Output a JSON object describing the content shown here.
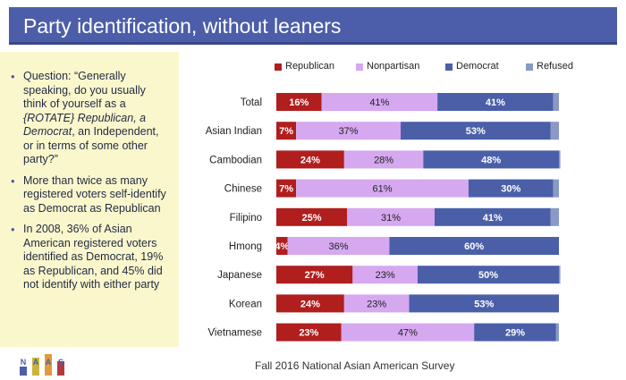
{
  "header": {
    "title": "Party identification, without leaners"
  },
  "notes": {
    "bullets": [
      [
        "Question: “Generally speaking, do you usually think of yourself as a ",
        "{ROTATE} Republican, a Democrat",
        ", an Independent, or in terms of some other party?”"
      ],
      [
        "More than twice as many registered voters self-identify as Democrat as Republican"
      ],
      [
        "In 2008, 36% of Asian American registered voters identified as Democrat, 19% as Republican, and 45% did not identify with either party"
      ]
    ]
  },
  "footer": {
    "source": "Fall 2016 National Asian American Survey"
  },
  "logo": {
    "letters": [
      "N",
      "A",
      "A",
      "S"
    ],
    "colors": [
      "#4c5ea9",
      "#c9b53c",
      "#e19b3a",
      "#b43a3a"
    ]
  },
  "chart_data": {
    "type": "bar",
    "orientation": "horizontal",
    "stacked": true,
    "categories": [
      "Total",
      "Asian Indian",
      "Cambodian",
      "Chinese",
      "Filipino",
      "Hmong",
      "Japanese",
      "Korean",
      "Vietnamese"
    ],
    "series": [
      {
        "name": "Republican",
        "color": "#b01e1e",
        "values": [
          16,
          7,
          24,
          7,
          25,
          4,
          27,
          24,
          23
        ],
        "labels": [
          "16%",
          "7%",
          "24%",
          "7%",
          "25%",
          "4%",
          "27%",
          "24%",
          "23%"
        ]
      },
      {
        "name": "Nonpartisan",
        "color": "#d5a8f0",
        "values": [
          41,
          37,
          28,
          61,
          31,
          36,
          23,
          23,
          47
        ],
        "labels": [
          "41%",
          "37%",
          "28%",
          "61%",
          "31%",
          "36%",
          "23%",
          "23%",
          "47%"
        ]
      },
      {
        "name": "Democrat",
        "color": "#4a5fa8",
        "values": [
          41,
          53,
          48,
          30,
          41,
          60,
          50,
          53,
          29
        ],
        "labels": [
          "41%",
          "53%",
          "48%",
          "30%",
          "41%",
          "60%",
          "50%",
          "53%",
          "29%"
        ]
      },
      {
        "name": "Refused",
        "color": "#8a9ac4",
        "values": [
          2,
          3,
          0.5,
          2,
          3,
          0,
          0.5,
          0,
          1
        ],
        "labels": [
          "",
          "",
          "",
          "",
          "",
          "",
          "",
          "",
          ""
        ]
      }
    ],
    "xlim": [
      0,
      100
    ],
    "legend_position": "top",
    "grid": false
  }
}
